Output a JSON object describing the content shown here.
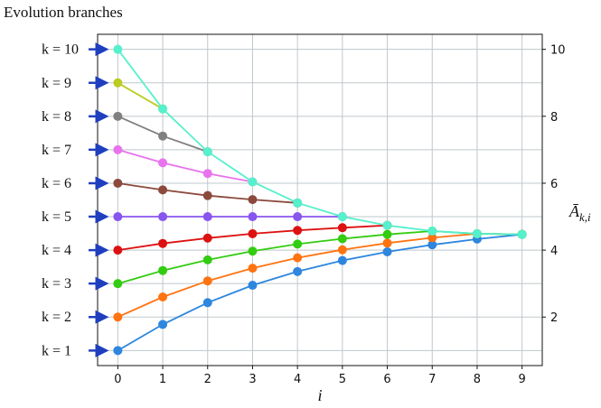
{
  "figure": {
    "title": "Evolution branches"
  },
  "chart_data": {
    "type": "line",
    "title": "Evolution branches",
    "xlabel": "i",
    "ylabel_right": "Ā_{k,i}",
    "xlim": [
      -0.45,
      9.45
    ],
    "ylim": [
      0.55,
      10.45
    ],
    "x_ticks": [
      0,
      1,
      2,
      3,
      4,
      5,
      6,
      7,
      8,
      9
    ],
    "y_ticks_right": [
      2,
      4,
      6,
      8,
      10
    ],
    "grid": true,
    "left_labels": [
      "k = 10",
      "k = 9",
      "k = 8",
      "k = 7",
      "k = 6",
      "k = 5",
      "k = 4",
      "k = 3",
      "k = 2",
      "k = 1"
    ],
    "left_label_y": [
      10,
      9,
      8,
      7,
      6,
      5,
      4,
      3,
      2,
      1
    ],
    "series": [
      {
        "k": 1,
        "color": "#2e86de",
        "points": [
          [
            0,
            1
          ],
          [
            1,
            1.78
          ],
          [
            2,
            2.43
          ],
          [
            3,
            2.95
          ],
          [
            4,
            3.36
          ],
          [
            5,
            3.69
          ],
          [
            6,
            3.95
          ],
          [
            7,
            4.16
          ],
          [
            8,
            4.33
          ],
          [
            9,
            4.47
          ]
        ]
      },
      {
        "k": 2,
        "color": "#ff7311",
        "points": [
          [
            0,
            2
          ],
          [
            1,
            2.6
          ],
          [
            2,
            3.08
          ],
          [
            3,
            3.46
          ],
          [
            4,
            3.77
          ],
          [
            5,
            4.01
          ],
          [
            6,
            4.21
          ],
          [
            7,
            4.37
          ],
          [
            8,
            4.49
          ],
          [
            9,
            4.47
          ]
        ]
      },
      {
        "k": 3,
        "color": "#33cc11",
        "points": [
          [
            0,
            3
          ],
          [
            1,
            3.39
          ],
          [
            2,
            3.71
          ],
          [
            3,
            3.97
          ],
          [
            4,
            4.18
          ],
          [
            5,
            4.34
          ],
          [
            6,
            4.47
          ],
          [
            7,
            4.57
          ],
          [
            8,
            4.49
          ],
          [
            9,
            4.47
          ]
        ]
      },
      {
        "k": 4,
        "color": "#dd1111",
        "points": [
          [
            0,
            4
          ],
          [
            1,
            4.2
          ],
          [
            2,
            4.36
          ],
          [
            3,
            4.49
          ],
          [
            4,
            4.59
          ],
          [
            5,
            4.67
          ],
          [
            6,
            4.74
          ]
        ]
      },
      {
        "k": 5,
        "color": "#8855ee",
        "points": [
          [
            0,
            5
          ],
          [
            1,
            5
          ],
          [
            2,
            5
          ],
          [
            3,
            5
          ],
          [
            4,
            5
          ],
          [
            5,
            5
          ]
        ]
      },
      {
        "k": 6,
        "color": "#8b4a3c",
        "points": [
          [
            0,
            6
          ],
          [
            1,
            5.8
          ],
          [
            2,
            5.63
          ],
          [
            3,
            5.51
          ],
          [
            4,
            5.41
          ]
        ]
      },
      {
        "k": 7,
        "color": "#e873ee",
        "points": [
          [
            0,
            7
          ],
          [
            1,
            6.61
          ],
          [
            2,
            6.29
          ],
          [
            3,
            6.04
          ]
        ]
      },
      {
        "k": 8,
        "color": "#808080",
        "points": [
          [
            0,
            8
          ],
          [
            1,
            7.41
          ],
          [
            2,
            6.94
          ]
        ]
      },
      {
        "k": 9,
        "color": "#bbcc22",
        "points": [
          [
            0,
            9
          ],
          [
            1,
            8.22
          ]
        ]
      },
      {
        "k": 10,
        "color": "#55f0cc",
        "points": [
          [
            0,
            10
          ],
          [
            1,
            8.22
          ],
          [
            2,
            6.94
          ],
          [
            3,
            6.04
          ],
          [
            4,
            5.41
          ],
          [
            5,
            5
          ],
          [
            6,
            4.74
          ],
          [
            7,
            4.57
          ],
          [
            8,
            4.49
          ],
          [
            9,
            4.47
          ]
        ]
      }
    ]
  }
}
